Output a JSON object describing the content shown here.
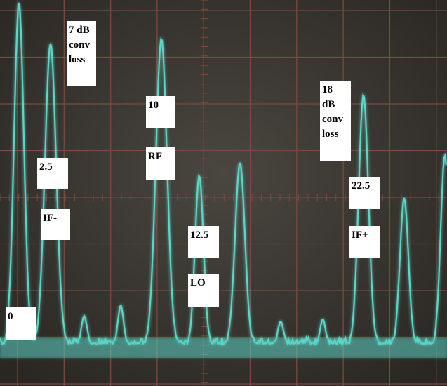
{
  "annotations": [
    {
      "lines": [
        "7 dB",
        "conv",
        "loss"
      ]
    },
    {
      "lines": [
        "2.5"
      ]
    },
    {
      "lines": [
        "IF-"
      ]
    },
    {
      "lines": [
        "10"
      ]
    },
    {
      "lines": [
        "RF"
      ]
    },
    {
      "lines": [
        "12.5"
      ]
    },
    {
      "lines": [
        "LO"
      ]
    },
    {
      "lines": [
        "18",
        "dB",
        "conv",
        "loss"
      ]
    },
    {
      "lines": [
        "22.5"
      ]
    },
    {
      "lines": [
        "IF+"
      ]
    },
    {
      "lines": [
        "0"
      ]
    }
  ]
}
